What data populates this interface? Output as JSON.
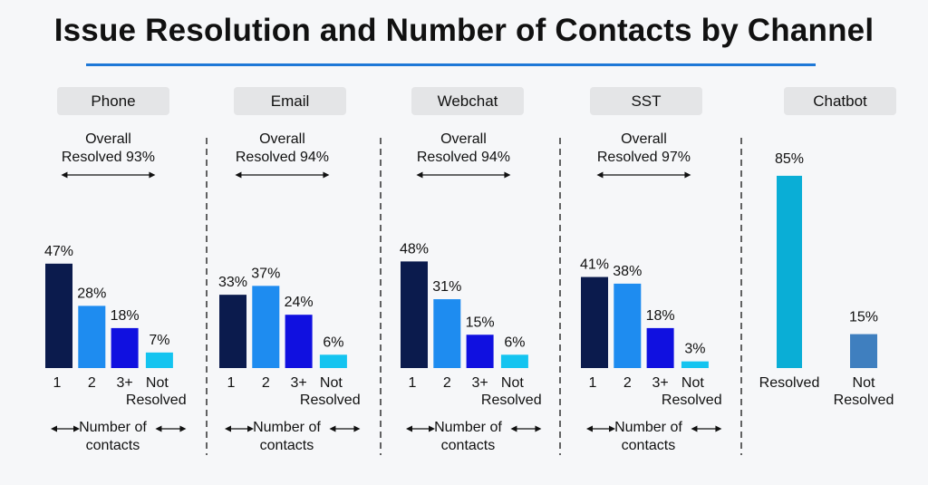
{
  "title": "Issue Resolution and Number of Contacts by Channel",
  "colors": {
    "contact_1": "#0b1b4d",
    "contact_2": "#1e8cf0",
    "contact_3plus": "#1010e0",
    "not_resolved": "#14c4f0",
    "chatbot_resolved": "#0aaed6",
    "chatbot_not_resolved": "#3f7fbf",
    "title_rule": "#1e78d7",
    "header_box": "#e4e5e7"
  },
  "chart_data": [
    {
      "type": "bar",
      "channel": "Phone",
      "overall": [
        "Overall",
        "Resolved 93%"
      ],
      "categories": [
        "1",
        "2",
        "3+",
        "Not Resolved"
      ],
      "category_lines": [
        [
          "1"
        ],
        [
          "2"
        ],
        [
          "3+"
        ],
        [
          "Not",
          "Resolved"
        ]
      ],
      "values": [
        47,
        28,
        18,
        7
      ],
      "value_labels": [
        "47%",
        "28%",
        "18%",
        "7%"
      ],
      "xlabel": [
        "Number of",
        "contacts"
      ],
      "unit": "%"
    },
    {
      "type": "bar",
      "channel": "Email",
      "overall": [
        "Overall",
        "Resolved 94%"
      ],
      "categories": [
        "1",
        "2",
        "3+",
        "Not Resolved"
      ],
      "category_lines": [
        [
          "1"
        ],
        [
          "2"
        ],
        [
          "3+"
        ],
        [
          "Not",
          "Resolved"
        ]
      ],
      "values": [
        33,
        37,
        24,
        6
      ],
      "value_labels": [
        "33%",
        "37%",
        "24%",
        "6%"
      ],
      "xlabel": [
        "Number of",
        "contacts"
      ],
      "unit": "%"
    },
    {
      "type": "bar",
      "channel": "Webchat",
      "overall": [
        "Overall",
        "Resolved 94%"
      ],
      "categories": [
        "1",
        "2",
        "3+",
        "Not Resolved"
      ],
      "category_lines": [
        [
          "1"
        ],
        [
          "2"
        ],
        [
          "3+"
        ],
        [
          "Not",
          "Resolved"
        ]
      ],
      "values": [
        48,
        31,
        15,
        6
      ],
      "value_labels": [
        "48%",
        "31%",
        "15%",
        "6%"
      ],
      "xlabel": [
        "Number of",
        "contacts"
      ],
      "unit": "%"
    },
    {
      "type": "bar",
      "channel": "SST",
      "overall": [
        "Overall",
        "Resolved 97%"
      ],
      "categories": [
        "1",
        "2",
        "3+",
        "Not Resolved"
      ],
      "category_lines": [
        [
          "1"
        ],
        [
          "2"
        ],
        [
          "3+"
        ],
        [
          "Not",
          "Resolved"
        ]
      ],
      "values": [
        41,
        38,
        18,
        3
      ],
      "value_labels": [
        "41%",
        "38%",
        "18%",
        "3%"
      ],
      "xlabel": [
        "Number of",
        "contacts"
      ],
      "unit": "%"
    },
    {
      "type": "bar",
      "channel": "Chatbot",
      "categories": [
        "Resolved",
        "Not Resolved"
      ],
      "category_lines": [
        [
          "Resolved"
        ],
        [
          "Not",
          "Resolved"
        ]
      ],
      "values": [
        85,
        15
      ],
      "value_labels": [
        "85%",
        "15%"
      ],
      "unit": "%"
    }
  ]
}
